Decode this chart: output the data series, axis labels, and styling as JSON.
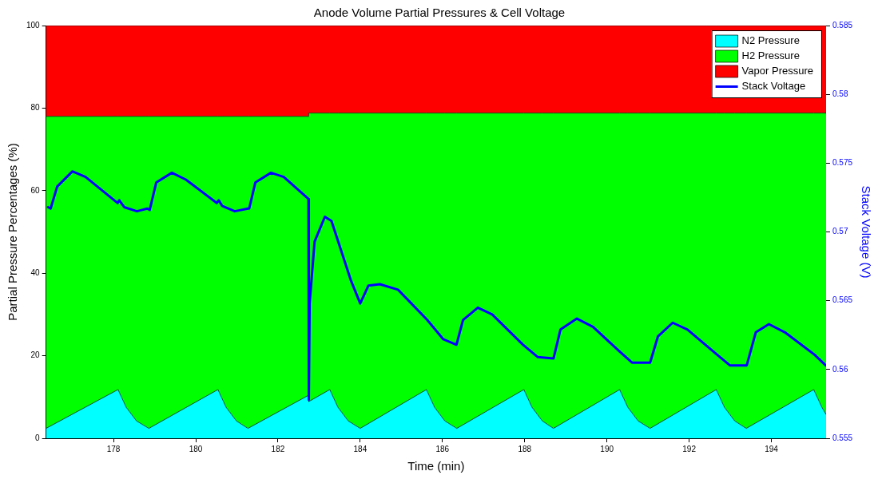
{
  "chart_data": {
    "type": "area",
    "title": "Anode Volume Partial Pressures & Cell Voltage",
    "xlabel": "Time (min)",
    "ylabel": "Partial Pressure Percentages (%)",
    "y2label": "Stack Voltage (V)",
    "stacked": true,
    "legend": "top right",
    "marker": "none",
    "x": [
      176.36,
      178.11,
      178.31,
      178.56,
      178.86,
      180.54,
      180.74,
      180.99,
      181.27,
      182.74,
      182.75,
      183.26,
      183.46,
      183.71,
      184.0,
      185.61,
      185.81,
      186.06,
      186.35,
      187.98,
      188.18,
      188.43,
      188.7,
      190.31,
      190.51,
      190.76,
      191.05,
      192.66,
      192.86,
      193.11,
      193.39,
      195.03,
      195.23,
      195.33
    ],
    "xlim": [
      176.36,
      195.33
    ],
    "xticks": [
      178,
      180,
      182,
      184,
      186,
      188,
      190,
      192,
      194
    ],
    "ylim": [
      0,
      100
    ],
    "yticks": [
      0,
      20,
      40,
      60,
      80,
      100
    ],
    "y2lim": [
      0.555,
      0.585
    ],
    "y2ticks": [
      0.555,
      0.56,
      0.565,
      0.57,
      0.575,
      0.58,
      0.585
    ],
    "series": [
      {
        "name": "N2 Pressure",
        "color": "#00ffff",
        "values": [
          2.4,
          11.8,
          7.5,
          4.2,
          2.4,
          11.8,
          7.5,
          4.2,
          2.4,
          10.4,
          8.9,
          11.8,
          7.5,
          4.2,
          2.4,
          11.8,
          7.5,
          4.2,
          2.4,
          11.8,
          7.5,
          4.2,
          2.4,
          11.8,
          7.5,
          4.2,
          2.4,
          11.8,
          7.5,
          4.2,
          2.4,
          11.8,
          7.5,
          5.8
        ]
      },
      {
        "name": "H2 Pressure",
        "color": "#00ff00",
        "values": [
          75.6,
          66.2,
          70.5,
          73.8,
          75.6,
          66.2,
          70.5,
          73.8,
          75.6,
          67.6,
          69.9,
          67.0,
          71.3,
          74.6,
          76.4,
          67.0,
          71.3,
          74.6,
          76.4,
          67.0,
          71.3,
          74.6,
          76.4,
          67.0,
          71.3,
          74.6,
          76.4,
          67.0,
          71.3,
          74.6,
          76.4,
          67.0,
          71.3,
          73.0
        ]
      },
      {
        "name": "Vapor Pressure",
        "color": "#ff0000",
        "values": [
          22.0,
          22.0,
          22.0,
          22.0,
          22.0,
          22.0,
          22.0,
          22.0,
          22.0,
          22.0,
          21.2,
          21.2,
          21.2,
          21.2,
          21.2,
          21.2,
          21.2,
          21.2,
          21.2,
          21.2,
          21.2,
          21.2,
          21.2,
          21.2,
          21.2,
          21.2,
          21.2,
          21.2,
          21.2,
          21.2,
          21.2,
          21.2,
          21.2,
          21.2
        ]
      },
      {
        "name": "Stack Voltage",
        "type": "line",
        "axis": "y2",
        "color": "#0000ff",
        "line_style": "solid",
        "x": [
          176.41,
          176.47,
          176.63,
          177.0,
          177.32,
          178.1,
          178.14,
          178.26,
          178.57,
          178.82,
          178.88,
          179.04,
          179.42,
          179.76,
          180.51,
          180.56,
          180.64,
          180.95,
          181.27,
          181.3,
          181.45,
          181.83,
          182.14,
          182.74,
          182.75,
          182.77,
          182.89,
          183.14,
          183.3,
          183.77,
          184.0,
          184.2,
          184.48,
          184.92,
          185.63,
          186.02,
          186.34,
          186.5,
          186.86,
          187.21,
          187.96,
          188.32,
          188.7,
          188.87,
          189.27,
          189.66,
          190.31,
          190.61,
          191.05,
          191.24,
          191.6,
          191.96,
          192.67,
          192.99,
          193.4,
          193.62,
          193.94,
          194.33,
          195.04,
          195.32
        ],
        "values": [
          0.5718,
          0.5717,
          0.5733,
          0.5744,
          0.574,
          0.5721,
          0.5723,
          0.5718,
          0.5715,
          0.5717,
          0.5716,
          0.5736,
          0.5743,
          0.5738,
          0.5721,
          0.5723,
          0.5719,
          0.5715,
          0.5717,
          0.5717,
          0.5736,
          0.5743,
          0.574,
          0.5724,
          0.5578,
          0.5648,
          0.5693,
          0.5711,
          0.5708,
          0.5665,
          0.5648,
          0.5661,
          0.5662,
          0.5658,
          0.5636,
          0.5622,
          0.5618,
          0.5636,
          0.5645,
          0.564,
          0.5618,
          0.5609,
          0.5608,
          0.5629,
          0.5637,
          0.5631,
          0.5613,
          0.5605,
          0.5605,
          0.5624,
          0.5634,
          0.5629,
          0.5611,
          0.5603,
          0.5603,
          0.5627,
          0.5633,
          0.5627,
          0.5611,
          0.5603
        ]
      }
    ]
  }
}
